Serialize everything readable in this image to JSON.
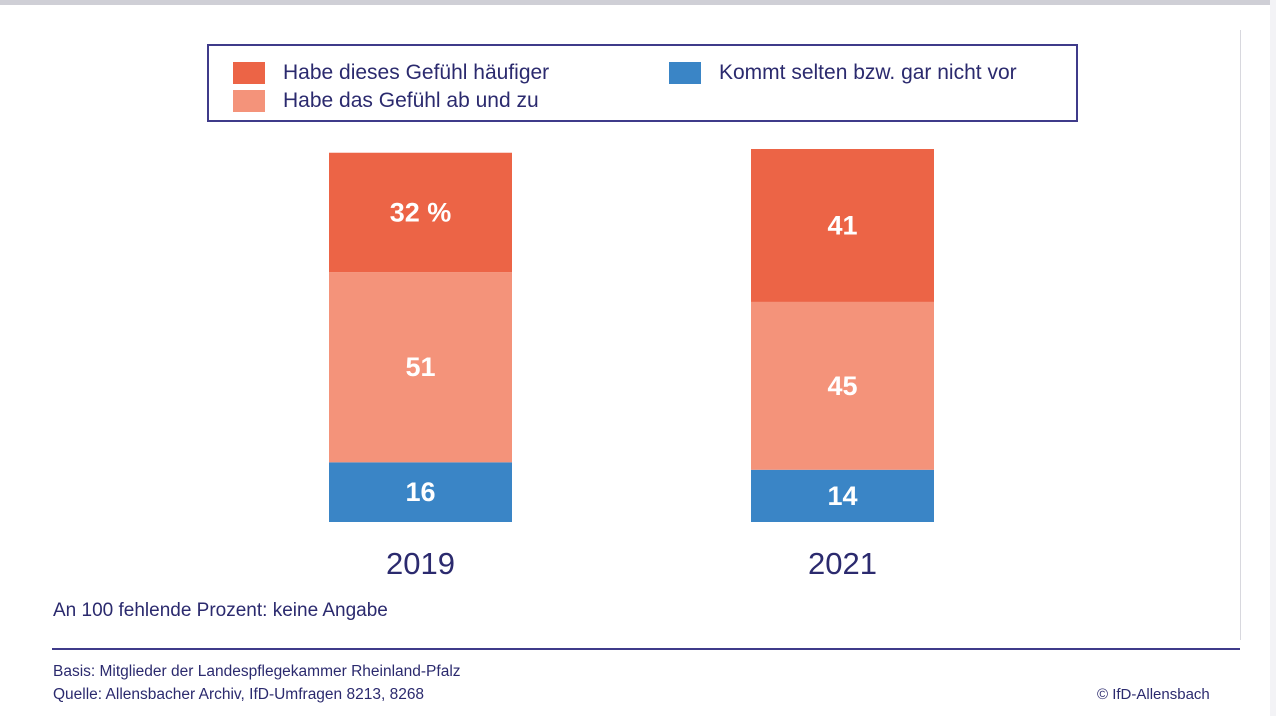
{
  "legend": {
    "items": [
      {
        "label": "Habe dieses Gefühl häufiger",
        "color": "#ec6446"
      },
      {
        "label": "Habe das Gefühl ab und zu",
        "color": "#f4937a"
      },
      {
        "label": "Kommt selten bzw. gar nicht vor",
        "color": "#3a85c6"
      }
    ]
  },
  "chart_data": {
    "type": "bar",
    "stacked": true,
    "categories": [
      "2019",
      "2021"
    ],
    "series": [
      {
        "name": "Kommt selten bzw. gar nicht vor",
        "values": [
          16,
          14
        ],
        "labels": [
          "16",
          "14"
        ],
        "color": "#3a85c6"
      },
      {
        "name": "Habe das Gefühl ab und zu",
        "values": [
          51,
          45
        ],
        "labels": [
          "51",
          "45"
        ],
        "color": "#f4937a"
      },
      {
        "name": "Habe dieses Gefühl häufiger",
        "values": [
          32,
          41
        ],
        "labels": [
          "32 %",
          "41"
        ],
        "color": "#ec6446"
      }
    ],
    "ylim": [
      0,
      100
    ],
    "grid": false,
    "legend_position": "top"
  },
  "footnote": "An 100 fehlende Prozent: keine Angabe",
  "basis": {
    "line1": "Basis: Mitglieder der Landespflegekammer Rheinland-Pfalz",
    "line2": "Quelle: Allensbacher Archiv, IfD-Umfragen 8213, 8268"
  },
  "copyright": "© IfD-Allensbach"
}
